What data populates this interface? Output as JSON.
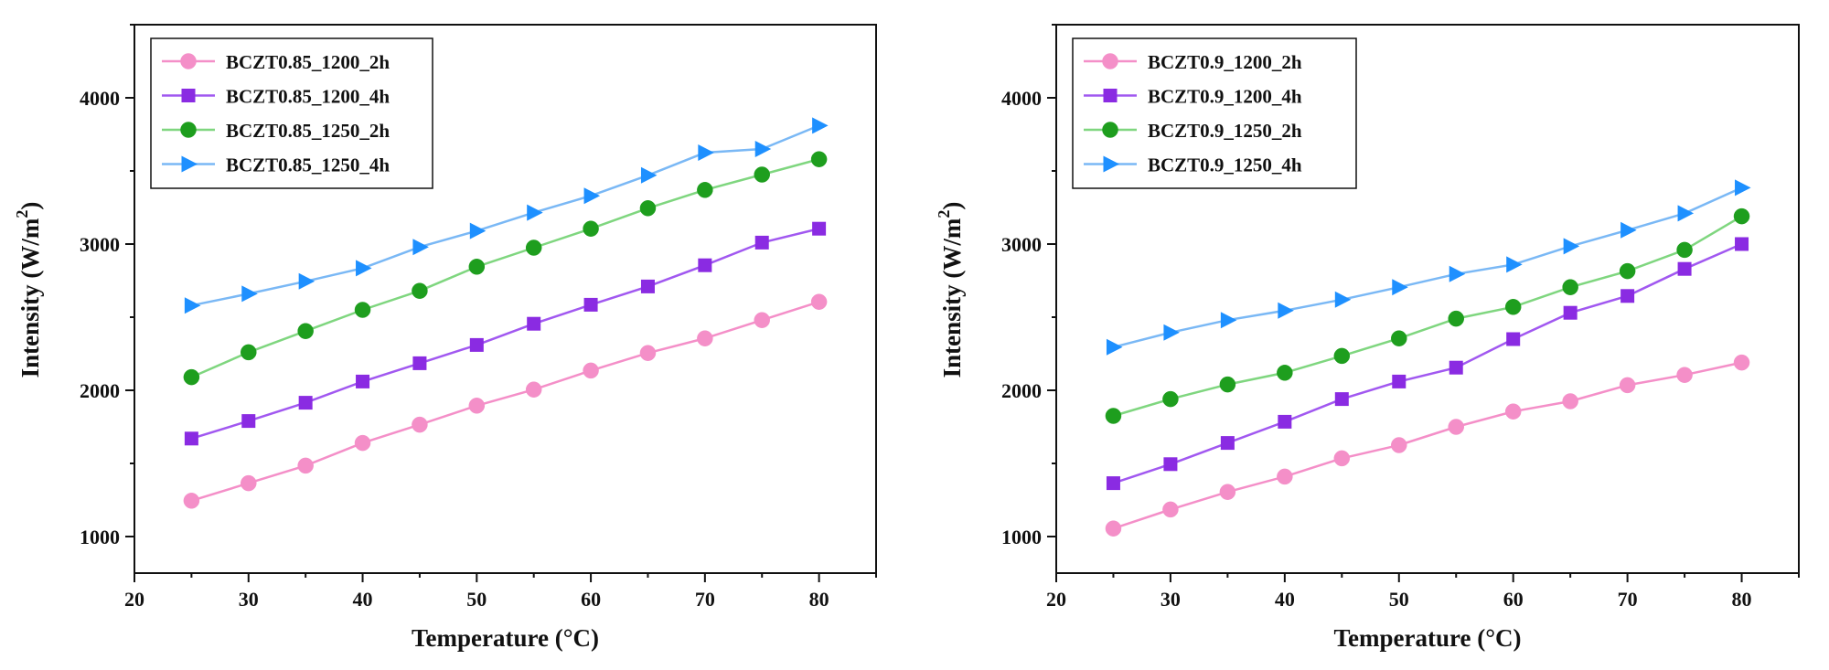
{
  "chart_data": [
    {
      "type": "line",
      "xlabel": "Temperature (°C)",
      "ylabel_prefix": "Intensity (W/m",
      "ylabel_sup": "2",
      "ylabel_suffix": ")",
      "xlim": [
        20,
        85
      ],
      "ylim": [
        750,
        4500
      ],
      "xticks": [
        20,
        30,
        40,
        50,
        60,
        70,
        80
      ],
      "yticks": [
        1000,
        2000,
        3000,
        4000
      ],
      "legend_position": "top-left",
      "x": [
        25,
        30,
        35,
        40,
        45,
        50,
        55,
        60,
        65,
        70,
        75,
        80
      ],
      "series": [
        {
          "name": "BCZT0.85_1200_2h",
          "marker": "circle",
          "color": "#f48fc8",
          "marker_color": "#f48fc8",
          "values": [
            1245,
            1365,
            1485,
            1640,
            1765,
            1895,
            2005,
            2135,
            2255,
            2355,
            2480,
            2605
          ]
        },
        {
          "name": "BCZT0.85_1200_4h",
          "marker": "square",
          "color": "#a158f0",
          "marker_color": "#8a2be2",
          "values": [
            1670,
            1790,
            1915,
            2060,
            2185,
            2310,
            2455,
            2585,
            2710,
            2855,
            3010,
            3105
          ]
        },
        {
          "name": "BCZT0.85_1250_2h",
          "marker": "circle",
          "color": "#7fd67f",
          "marker_color": "#1e9e1e",
          "values": [
            2090,
            2260,
            2405,
            2550,
            2680,
            2845,
            2975,
            3105,
            3245,
            3370,
            3475,
            3580
          ]
        },
        {
          "name": "BCZT0.85_1250_4h",
          "marker": "triangle-right",
          "color": "#7ab8f5",
          "marker_color": "#1e90ff",
          "values": [
            2580,
            2660,
            2745,
            2835,
            2980,
            3090,
            3215,
            3330,
            3470,
            3625,
            3650,
            3810
          ]
        }
      ]
    },
    {
      "type": "line",
      "xlabel": "Temperature (°C)",
      "ylabel_prefix": "Intensity (W/m",
      "ylabel_sup": "2",
      "ylabel_suffix": ")",
      "xlim": [
        20,
        85
      ],
      "ylim": [
        750,
        4500
      ],
      "xticks": [
        20,
        30,
        40,
        50,
        60,
        70,
        80
      ],
      "yticks": [
        1000,
        2000,
        3000,
        4000
      ],
      "legend_position": "top-left",
      "x": [
        25,
        30,
        35,
        40,
        45,
        50,
        55,
        60,
        65,
        70,
        75,
        80
      ],
      "series": [
        {
          "name": "BCZT0.9_1200_2h",
          "marker": "circle",
          "color": "#f48fc8",
          "marker_color": "#f48fc8",
          "values": [
            1055,
            1185,
            1305,
            1410,
            1535,
            1625,
            1750,
            1855,
            1925,
            2035,
            2105,
            2190
          ]
        },
        {
          "name": "BCZT0.9_1200_4h",
          "marker": "square",
          "color": "#a158f0",
          "marker_color": "#8a2be2",
          "values": [
            1365,
            1495,
            1640,
            1785,
            1940,
            2060,
            2155,
            2350,
            2530,
            2645,
            2830,
            3000
          ]
        },
        {
          "name": "BCZT0.9_1250_2h",
          "marker": "circle",
          "color": "#7fd67f",
          "marker_color": "#1e9e1e",
          "values": [
            1825,
            1940,
            2040,
            2120,
            2235,
            2355,
            2490,
            2570,
            2705,
            2815,
            2960,
            3190
          ]
        },
        {
          "name": "BCZT0.9_1250_4h",
          "marker": "triangle-right",
          "color": "#7ab8f5",
          "marker_color": "#1e90ff",
          "values": [
            2295,
            2395,
            2480,
            2545,
            2620,
            2705,
            2795,
            2860,
            2985,
            3095,
            3210,
            3385
          ]
        }
      ]
    }
  ]
}
